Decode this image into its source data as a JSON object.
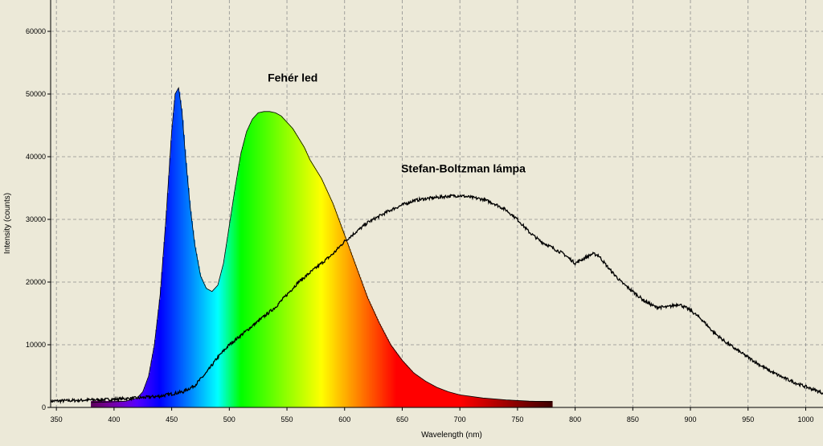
{
  "chart_data": {
    "type": "area",
    "title": "",
    "xlabel": "Wavelength (nm)",
    "ylabel": "Intensity (counts)",
    "xlim": [
      345,
      1015
    ],
    "ylim": [
      0,
      65000
    ],
    "grid": true,
    "x_ticks": [
      350,
      400,
      450,
      500,
      550,
      600,
      650,
      700,
      750,
      800,
      850,
      900,
      950,
      1000
    ],
    "y_ticks": [
      0,
      10000,
      20000,
      30000,
      40000,
      50000,
      60000
    ],
    "annotations": [
      {
        "text": "Fehér led",
        "x": 555,
        "y": 52000
      },
      {
        "text": "Stefan-Boltzman lámpa",
        "x": 703,
        "y": 37500
      }
    ],
    "spectrum_bar": {
      "from": 380,
      "to": 780
    },
    "series": [
      {
        "style": "spectrum-filled",
        "x": [
          380,
          400,
          410,
          420,
          425,
          430,
          435,
          440,
          445,
          450,
          453,
          456,
          459,
          462,
          466,
          470,
          475,
          480,
          485,
          490,
          495,
          500,
          505,
          510,
          515,
          520,
          525,
          530,
          535,
          540,
          545,
          550,
          555,
          560,
          565,
          570,
          580,
          590,
          600,
          610,
          620,
          630,
          640,
          650,
          660,
          670,
          680,
          690,
          700,
          720,
          740,
          760,
          780
        ],
        "values": [
          800,
          900,
          1000,
          1500,
          2500,
          5000,
          10000,
          18000,
          30000,
          44000,
          50000,
          51000,
          47000,
          40000,
          32000,
          26000,
          21000,
          19000,
          18500,
          19500,
          23000,
          29000,
          35000,
          40500,
          44000,
          46000,
          47000,
          47200,
          47200,
          47000,
          46500,
          45500,
          44500,
          43000,
          41500,
          39500,
          36500,
          32500,
          27500,
          22500,
          17500,
          13500,
          10000,
          7500,
          5500,
          4200,
          3200,
          2500,
          2000,
          1500,
          1200,
          1000,
          900
        ]
      },
      {
        "style": "line",
        "x": [
          345,
          380,
          400,
          420,
          440,
          460,
          470,
          480,
          490,
          500,
          510,
          520,
          530,
          540,
          550,
          560,
          570,
          580,
          590,
          600,
          610,
          620,
          630,
          640,
          650,
          660,
          670,
          680,
          690,
          700,
          710,
          720,
          730,
          740,
          750,
          760,
          770,
          780,
          790,
          800,
          810,
          815,
          820,
          830,
          840,
          850,
          860,
          870,
          880,
          890,
          900,
          910,
          920,
          930,
          940,
          950,
          960,
          970,
          980,
          990,
          1000,
          1015
        ],
        "values": [
          1000,
          1200,
          1300,
          1500,
          1800,
          2500,
          3500,
          5500,
          8000,
          10000,
          11500,
          13000,
          14500,
          16000,
          18000,
          20000,
          21500,
          23000,
          24500,
          26500,
          28000,
          29500,
          30500,
          31500,
          32300,
          33000,
          33300,
          33500,
          33700,
          33800,
          33500,
          33200,
          32500,
          31500,
          30000,
          28000,
          26500,
          25500,
          24500,
          23000,
          24000,
          24500,
          24300,
          22000,
          20000,
          18500,
          17000,
          16000,
          16000,
          16500,
          15500,
          14000,
          12000,
          10500,
          9200,
          8000,
          6800,
          5700,
          4800,
          4000,
          3300,
          2300
        ]
      }
    ]
  }
}
